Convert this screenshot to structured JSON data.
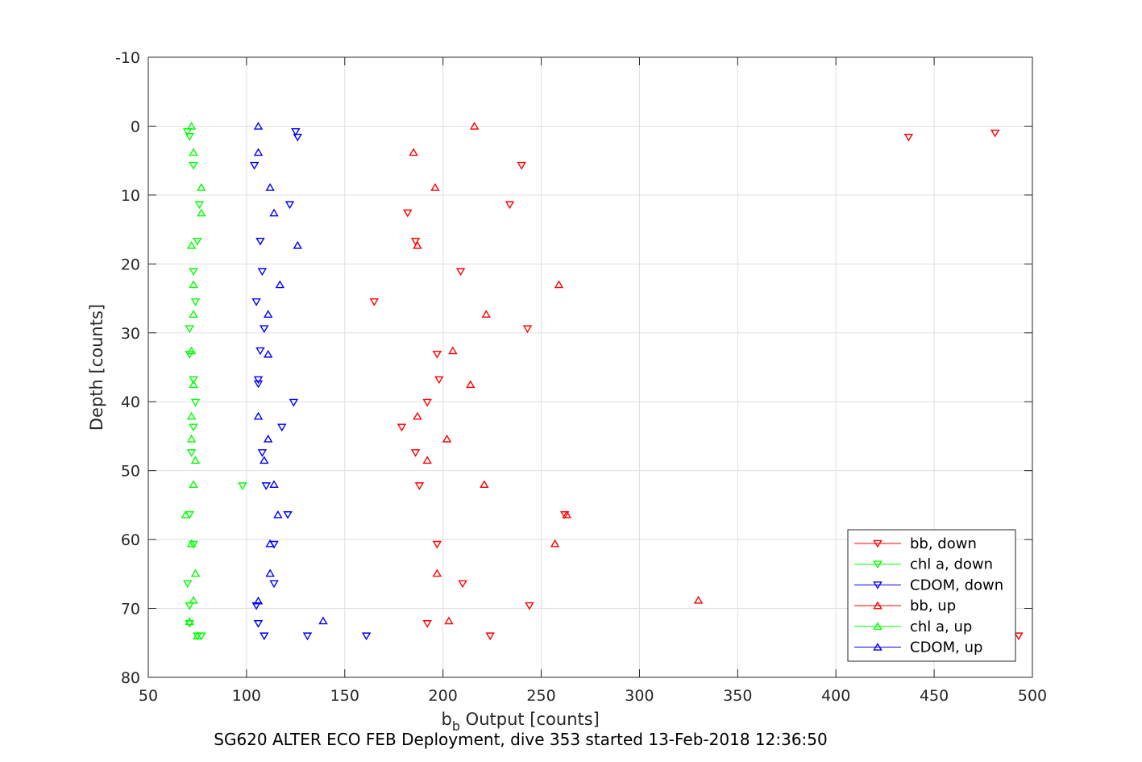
{
  "chart_data": {
    "type": "scatter",
    "title": "",
    "caption": "SG620 ALTER ECO FEB Deployment, dive 353 started 13-Feb-2018 12:36:50",
    "xlabel_main": "b",
    "xlabel_sub": "b",
    "xlabel_rest": " Output [counts]",
    "ylabel": "Depth [counts]",
    "xlim": [
      50,
      500
    ],
    "ylim": [
      -10,
      80
    ],
    "y_reversed": true,
    "x_ticks": [
      50,
      100,
      150,
      200,
      250,
      300,
      350,
      400,
      450,
      500
    ],
    "y_ticks": [
      -10,
      0,
      10,
      20,
      30,
      40,
      50,
      60,
      70,
      80
    ],
    "grid": true,
    "legend_position": "bottom-right",
    "colors": {
      "red": "#ff0000",
      "green": "#00ff00",
      "blue": "#0000ff"
    },
    "series": [
      {
        "name": "bb, down",
        "marker": "triangle-down",
        "color": "#ff0000",
        "points": [
          [
            481,
            1
          ],
          [
            437,
            1.6
          ],
          [
            240,
            5.7
          ],
          [
            234,
            11.4
          ],
          [
            182,
            12.6
          ],
          [
            186,
            16.7
          ],
          [
            209,
            21.1
          ],
          [
            165,
            25.5
          ],
          [
            243,
            29.4
          ],
          [
            197,
            33.1
          ],
          [
            198,
            36.8
          ],
          [
            192,
            40.1
          ],
          [
            179,
            43.7
          ],
          [
            186,
            47.4
          ],
          [
            188,
            52.2
          ],
          [
            262,
            56.4
          ],
          [
            197,
            60.7
          ],
          [
            210,
            66.4
          ],
          [
            244,
            69.6
          ],
          [
            192,
            72.2
          ],
          [
            224,
            74
          ],
          [
            493,
            74
          ]
        ]
      },
      {
        "name": "chl a, down",
        "marker": "triangle-down",
        "color": "#00ff00",
        "points": [
          [
            70,
            0.8
          ],
          [
            71,
            1.5
          ],
          [
            73,
            5.7
          ],
          [
            76,
            11.4
          ],
          [
            75,
            16.7
          ],
          [
            73,
            21.1
          ],
          [
            74,
            25.5
          ],
          [
            71,
            29.4
          ],
          [
            71,
            33.1
          ],
          [
            73,
            36.8
          ],
          [
            74,
            40.1
          ],
          [
            73,
            43.7
          ],
          [
            72,
            47.4
          ],
          [
            98,
            52.2
          ],
          [
            71,
            56.4
          ],
          [
            73,
            60.7
          ],
          [
            70,
            66.4
          ],
          [
            71,
            69.6
          ],
          [
            71,
            72.2
          ],
          [
            75,
            74
          ],
          [
            77,
            74
          ]
        ]
      },
      {
        "name": "CDOM, down",
        "marker": "triangle-down",
        "color": "#0000ff",
        "points": [
          [
            125,
            0.8
          ],
          [
            126,
            1.6
          ],
          [
            104,
            5.7
          ],
          [
            122,
            11.4
          ],
          [
            107,
            16.7
          ],
          [
            108,
            21.1
          ],
          [
            105,
            25.5
          ],
          [
            109,
            29.4
          ],
          [
            107,
            32.6
          ],
          [
            106,
            36.8
          ],
          [
            106,
            37.4
          ],
          [
            124,
            40.1
          ],
          [
            118,
            43.7
          ],
          [
            108,
            47.4
          ],
          [
            110,
            52.2
          ],
          [
            121,
            56.4
          ],
          [
            114,
            60.7
          ],
          [
            114,
            66.4
          ],
          [
            105,
            69.6
          ],
          [
            106,
            72.2
          ],
          [
            109,
            74
          ],
          [
            131,
            74
          ],
          [
            161,
            74
          ]
        ]
      },
      {
        "name": "bb, up",
        "marker": "triangle-up",
        "color": "#ff0000",
        "points": [
          [
            216,
            0
          ],
          [
            185,
            3.8
          ],
          [
            196,
            8.9
          ],
          [
            187,
            17.3
          ],
          [
            259,
            23
          ],
          [
            222,
            27.3
          ],
          [
            205,
            32.6
          ],
          [
            214,
            37.5
          ],
          [
            187,
            42.1
          ],
          [
            202,
            45.4
          ],
          [
            192,
            48.5
          ],
          [
            221,
            52
          ],
          [
            263,
            56.4
          ],
          [
            257,
            60.6
          ],
          [
            197,
            64.9
          ],
          [
            330,
            68.8
          ],
          [
            203,
            71.8
          ]
        ]
      },
      {
        "name": "chl a, up",
        "marker": "triangle-up",
        "color": "#00ff00",
        "points": [
          [
            72,
            0
          ],
          [
            73,
            3.8
          ],
          [
            77,
            8.9
          ],
          [
            77,
            12.6
          ],
          [
            72,
            17.3
          ],
          [
            73,
            23
          ],
          [
            73,
            27.3
          ],
          [
            72,
            32.6
          ],
          [
            73,
            37.5
          ],
          [
            72,
            42.1
          ],
          [
            72,
            45.4
          ],
          [
            74,
            48.5
          ],
          [
            73,
            52
          ],
          [
            69,
            56.4
          ],
          [
            72,
            60.6
          ],
          [
            74,
            64.9
          ],
          [
            73,
            68.8
          ],
          [
            71,
            71.9
          ],
          [
            75,
            74
          ]
        ]
      },
      {
        "name": "CDOM, up",
        "marker": "triangle-up",
        "color": "#0000ff",
        "points": [
          [
            106,
            0
          ],
          [
            106,
            3.8
          ],
          [
            112,
            8.9
          ],
          [
            114,
            12.6
          ],
          [
            126,
            17.3
          ],
          [
            117,
            23
          ],
          [
            111,
            27.3
          ],
          [
            111,
            33.1
          ],
          [
            106,
            42.1
          ],
          [
            111,
            45.4
          ],
          [
            109,
            48.5
          ],
          [
            114,
            52
          ],
          [
            116,
            56.4
          ],
          [
            112,
            60.6
          ],
          [
            112,
            64.9
          ],
          [
            106,
            68.9
          ],
          [
            139,
            71.8
          ]
        ]
      }
    ]
  }
}
